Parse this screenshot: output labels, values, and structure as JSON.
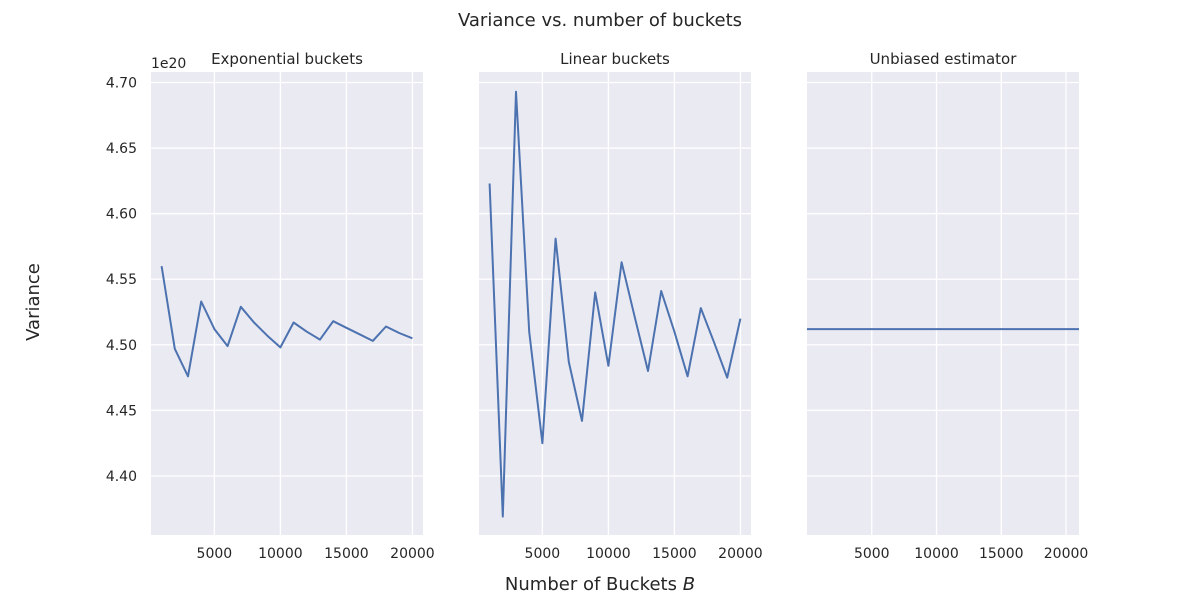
{
  "figure": {
    "suptitle": "Variance vs. number of buckets",
    "ylabel": "Variance",
    "xlabel": "Number of Buckets ",
    "xlabel_var": "B",
    "y_offset_label": "1e20"
  },
  "chart_data": [
    {
      "type": "line",
      "title": "Exponential buckets",
      "x": [
        1000,
        2000,
        3000,
        4000,
        5000,
        6000,
        7000,
        8000,
        9000,
        10000,
        11000,
        12000,
        13000,
        14000,
        15000,
        16000,
        17000,
        18000,
        19000,
        20000
      ],
      "series": [
        {
          "values": [
            4.56,
            4.497,
            4.476,
            4.533,
            4.512,
            4.499,
            4.529,
            4.517,
            4.507,
            4.498,
            4.517,
            4.51,
            4.504,
            4.518,
            4.513,
            4.508,
            4.503,
            4.514,
            4.509,
            4.505
          ],
          "color": "#4c72b0"
        }
      ],
      "xlim": [
        200,
        20800
      ],
      "ylim": [
        4.355,
        4.708
      ],
      "xticks": [
        5000,
        10000,
        15000,
        20000
      ],
      "xtick_labels": [
        "5000",
        "10000",
        "15000",
        "20000"
      ],
      "yticks": [
        4.4,
        4.45,
        4.5,
        4.55,
        4.6,
        4.65,
        4.7
      ],
      "ytick_labels": [
        "4.40",
        "4.45",
        "4.50",
        "4.55",
        "4.60",
        "4.65",
        "4.70"
      ],
      "y_scale": "1e20",
      "grid": true
    },
    {
      "type": "line",
      "title": "Linear buckets",
      "x": [
        1000,
        2000,
        3000,
        4000,
        5000,
        6000,
        7000,
        8000,
        9000,
        10000,
        11000,
        12000,
        13000,
        14000,
        15000,
        16000,
        17000,
        18000,
        19000,
        20000
      ],
      "series": [
        {
          "values": [
            4.623,
            4.369,
            4.693,
            4.51,
            4.425,
            4.581,
            4.487,
            4.442,
            4.54,
            4.484,
            4.563,
            4.521,
            4.48,
            4.541,
            4.51,
            4.476,
            4.528,
            4.502,
            4.475,
            4.52
          ],
          "color": "#4c72b0"
        }
      ],
      "xlim": [
        200,
        20800
      ],
      "ylim": [
        4.355,
        4.708
      ],
      "xticks": [
        5000,
        10000,
        15000,
        20000
      ],
      "xtick_labels": [
        "5000",
        "10000",
        "15000",
        "20000"
      ],
      "yticks": [
        4.4,
        4.45,
        4.5,
        4.55,
        4.6,
        4.65,
        4.7
      ],
      "ytick_labels": [],
      "y_scale": "1e20",
      "grid": true
    },
    {
      "type": "line",
      "title": "Unbiased estimator",
      "x": [
        0,
        21000
      ],
      "series": [
        {
          "values": [
            4.512,
            4.512
          ],
          "color": "#4c72b0"
        }
      ],
      "xlim": [
        0,
        21000
      ],
      "ylim": [
        4.355,
        4.708
      ],
      "xticks": [
        5000,
        10000,
        15000,
        20000
      ],
      "xtick_labels": [
        "5000",
        "10000",
        "15000",
        "20000"
      ],
      "yticks": [
        4.4,
        4.45,
        4.5,
        4.55,
        4.6,
        4.65,
        4.7
      ],
      "ytick_labels": [],
      "y_scale": "1e20",
      "grid": true
    }
  ]
}
